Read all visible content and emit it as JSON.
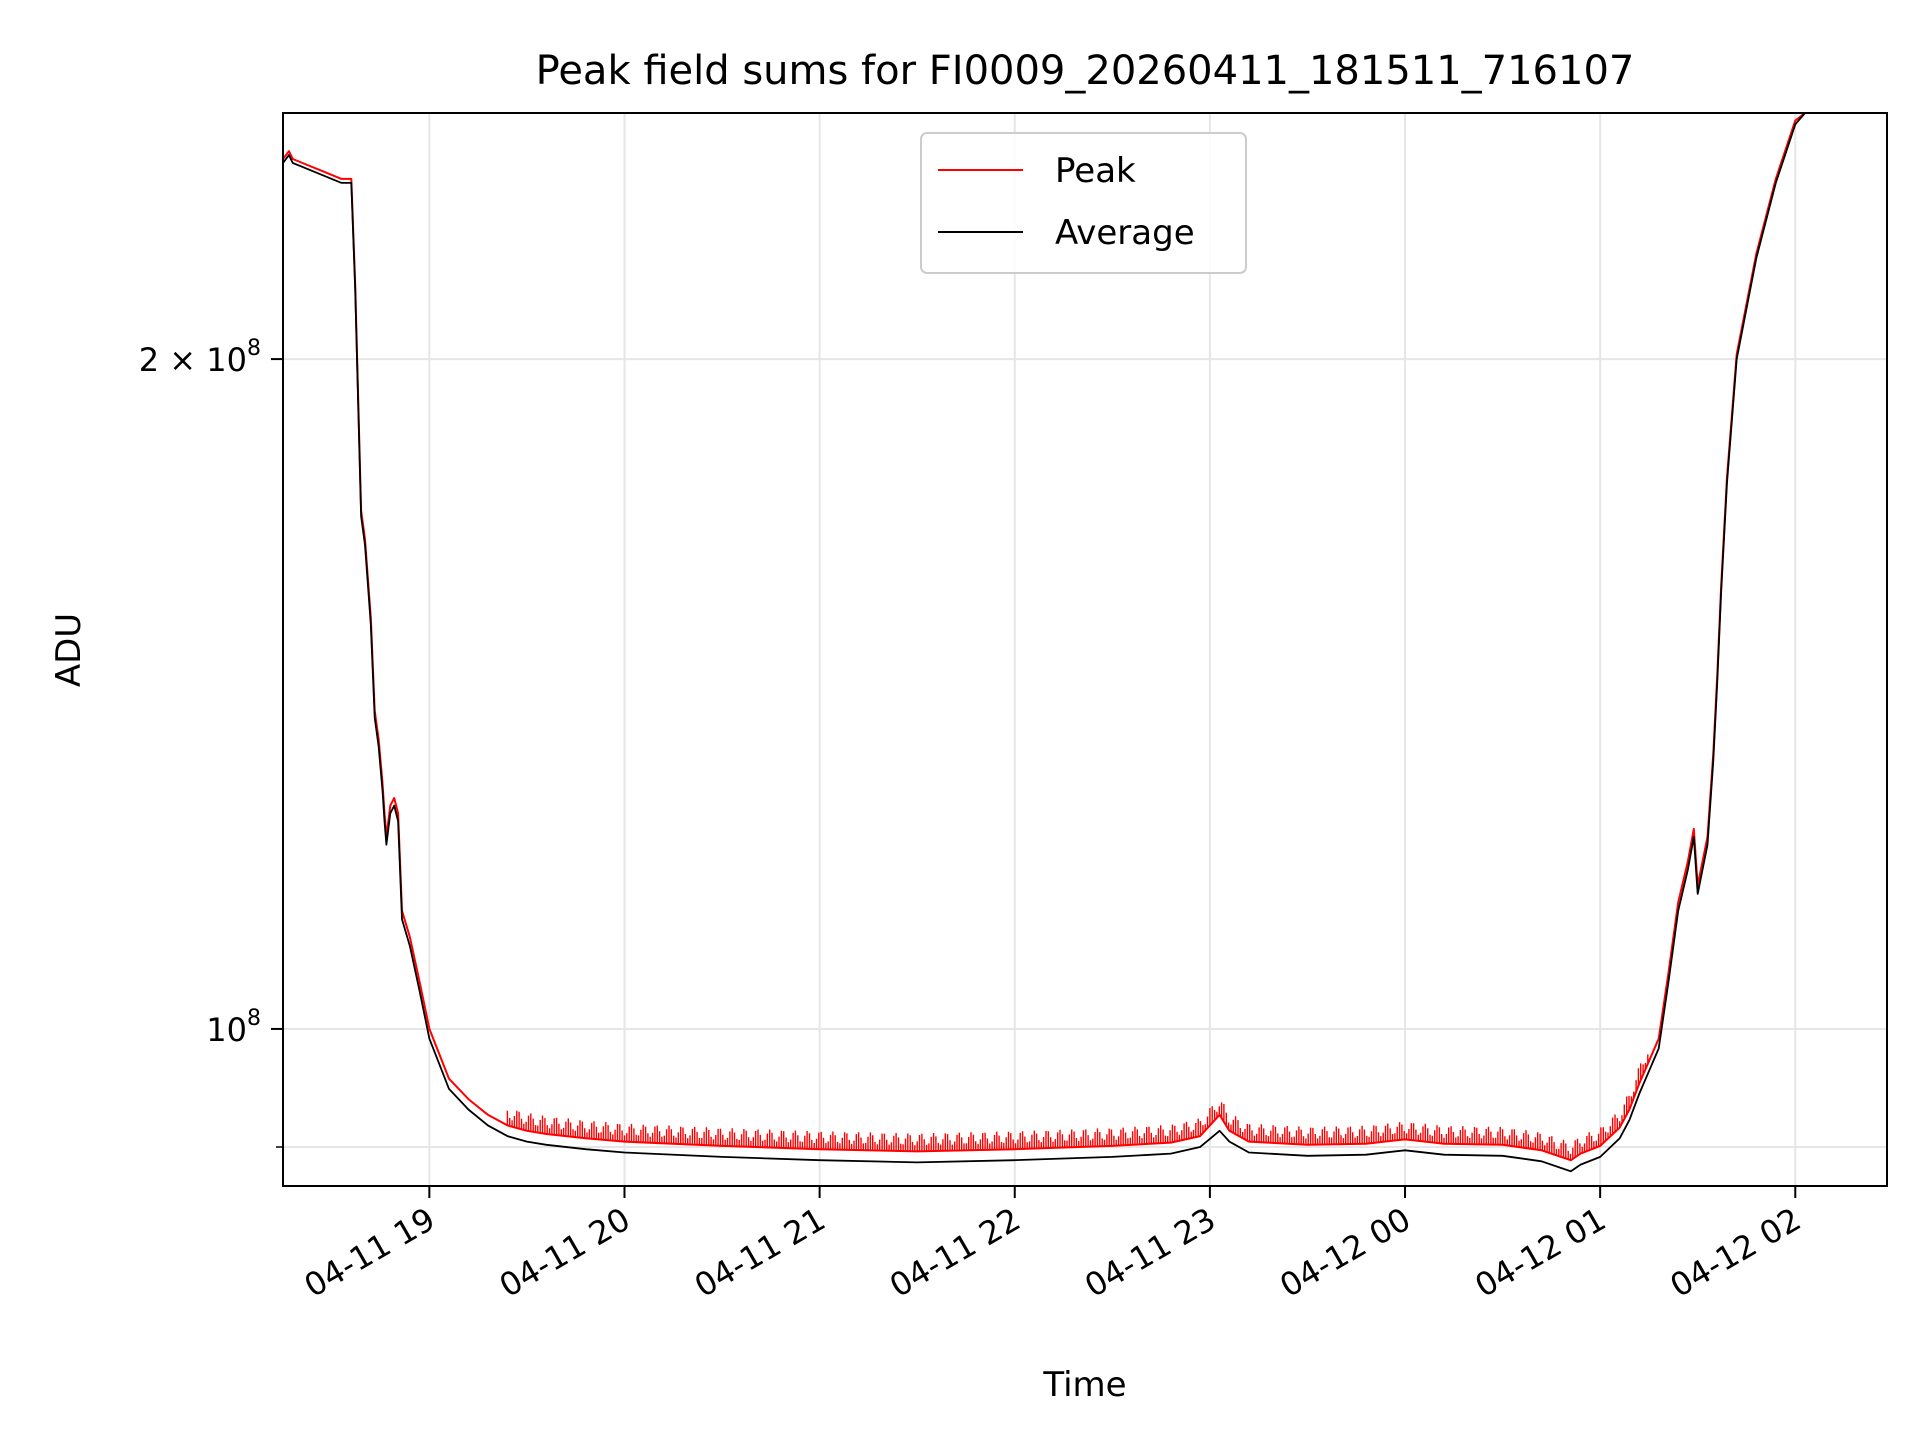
{
  "chart_data": {
    "type": "line",
    "title": "Peak field sums for FI0009_20260411_181511_716107",
    "xlabel": "Time",
    "ylabel": "ADU",
    "grid": true,
    "yscale": "log",
    "ylim": [
      85000000,
      258000000
    ],
    "xlim_hours": [
      18.25,
      26.47
    ],
    "x_ticks": [
      {
        "label": "04-11 19",
        "hour": 19
      },
      {
        "label": "04-11 20",
        "hour": 20
      },
      {
        "label": "04-11 21",
        "hour": 21
      },
      {
        "label": "04-11 22",
        "hour": 22
      },
      {
        "label": "04-11 23",
        "hour": 23
      },
      {
        "label": "04-12 00",
        "hour": 24
      },
      {
        "label": "04-12 01",
        "hour": 25
      },
      {
        "label": "04-12 02",
        "hour": 26
      }
    ],
    "y_ticks": [
      {
        "base": "2 × 10",
        "exp": "8",
        "value": 200000000
      },
      {
        "base": "10",
        "exp": "8",
        "value": 100000000
      }
    ],
    "legend": {
      "position": "upper-center",
      "entries": [
        {
          "label": "Peak",
          "color": "#ff0000"
        },
        {
          "label": "Average",
          "color": "#000000"
        }
      ]
    },
    "series": [
      {
        "name": "Average",
        "color": "#000000",
        "x_hours": [
          18.25,
          18.28,
          18.3,
          18.35,
          18.45,
          18.55,
          18.6,
          18.62,
          18.65,
          18.67,
          18.7,
          18.72,
          18.74,
          18.76,
          18.77,
          18.78,
          18.8,
          18.82,
          18.84,
          18.86,
          18.9,
          18.95,
          19.0,
          19.1,
          19.2,
          19.3,
          19.4,
          19.5,
          19.6,
          19.8,
          20.0,
          20.5,
          21.0,
          21.5,
          22.0,
          22.5,
          22.8,
          22.95,
          23.05,
          23.1,
          23.2,
          23.5,
          23.8,
          24.0,
          24.2,
          24.5,
          24.7,
          24.8,
          24.85,
          24.9,
          25.0,
          25.1,
          25.15,
          25.2,
          25.3,
          25.35,
          25.4,
          25.45,
          25.48,
          25.5,
          25.55,
          25.58,
          25.6,
          25.62,
          25.65,
          25.7,
          25.8,
          25.9,
          26.0,
          26.05,
          26.1,
          26.15,
          26.2,
          26.3,
          26.4,
          26.47
        ],
        "values": [
          245000000,
          247000000,
          245000000,
          244000000,
          242000000,
          240000000,
          240000000,
          215000000,
          170000000,
          165000000,
          152000000,
          138000000,
          134000000,
          128000000,
          124000000,
          121000000,
          125000000,
          126000000,
          124000000,
          112000000,
          109000000,
          104000000,
          99000000,
          94000000,
          92000000,
          90500000,
          89500000,
          89000000,
          88700000,
          88300000,
          88000000,
          87600000,
          87300000,
          87100000,
          87300000,
          87600000,
          87900000,
          88500000,
          90000000,
          89000000,
          88000000,
          87700000,
          87800000,
          88200000,
          87800000,
          87700000,
          87200000,
          86600000,
          86300000,
          86900000,
          87600000,
          89300000,
          91000000,
          93500000,
          98000000,
          105000000,
          113000000,
          118000000,
          122000000,
          115000000,
          121000000,
          132000000,
          143000000,
          157000000,
          176000000,
          200000000,
          222000000,
          240000000,
          255000000,
          258000000,
          258000000,
          258000000,
          258000000,
          258000000,
          258000000,
          258000000
        ]
      },
      {
        "name": "Peak",
        "color": "#ff0000",
        "x_hours": [
          18.25,
          18.28,
          18.3,
          18.35,
          18.45,
          18.55,
          18.6,
          18.62,
          18.65,
          18.67,
          18.7,
          18.72,
          18.74,
          18.76,
          18.77,
          18.78,
          18.8,
          18.82,
          18.84,
          18.86,
          18.9,
          18.95,
          19.0,
          19.1,
          19.2,
          19.3,
          19.4,
          19.5,
          19.6,
          19.8,
          20.0,
          20.5,
          21.0,
          21.5,
          22.0,
          22.5,
          22.8,
          22.95,
          23.05,
          23.1,
          23.2,
          23.5,
          23.8,
          24.0,
          24.2,
          24.5,
          24.7,
          24.8,
          24.85,
          24.9,
          25.0,
          25.1,
          25.15,
          25.2,
          25.3,
          25.35,
          25.4,
          25.45,
          25.48,
          25.5,
          25.55,
          25.58,
          25.6,
          25.62,
          25.65,
          25.7,
          25.8,
          25.9,
          26.0,
          26.05,
          26.1,
          26.15,
          26.2,
          26.3,
          26.4,
          26.47
        ],
        "values": [
          246000000,
          248000000,
          246000000,
          245000000,
          243000000,
          241000000,
          241000000,
          216000000,
          171000000,
          166000000,
          153000000,
          139000000,
          135000000,
          129000000,
          125000000,
          122000000,
          126000000,
          127000000,
          125000000,
          113000000,
          110000000,
          105000000,
          100000000,
          95000000,
          93000000,
          91500000,
          90500000,
          90000000,
          89700000,
          89300000,
          89000000,
          88600000,
          88300000,
          88100000,
          88300000,
          88600000,
          88900000,
          89500000,
          91500000,
          90000000,
          89000000,
          88700000,
          88800000,
          89200000,
          88800000,
          88700000,
          88200000,
          87600000,
          87300000,
          87900000,
          88600000,
          90300000,
          92000000,
          94500000,
          99000000,
          106000000,
          114000000,
          119000000,
          123000000,
          116000000,
          122000000,
          133000000,
          144000000,
          158000000,
          177000000,
          201000000,
          223000000,
          241000000,
          256000000,
          258000000,
          258000000,
          258000000,
          258000000,
          258000000,
          258000000,
          258000000
        ]
      }
    ]
  }
}
